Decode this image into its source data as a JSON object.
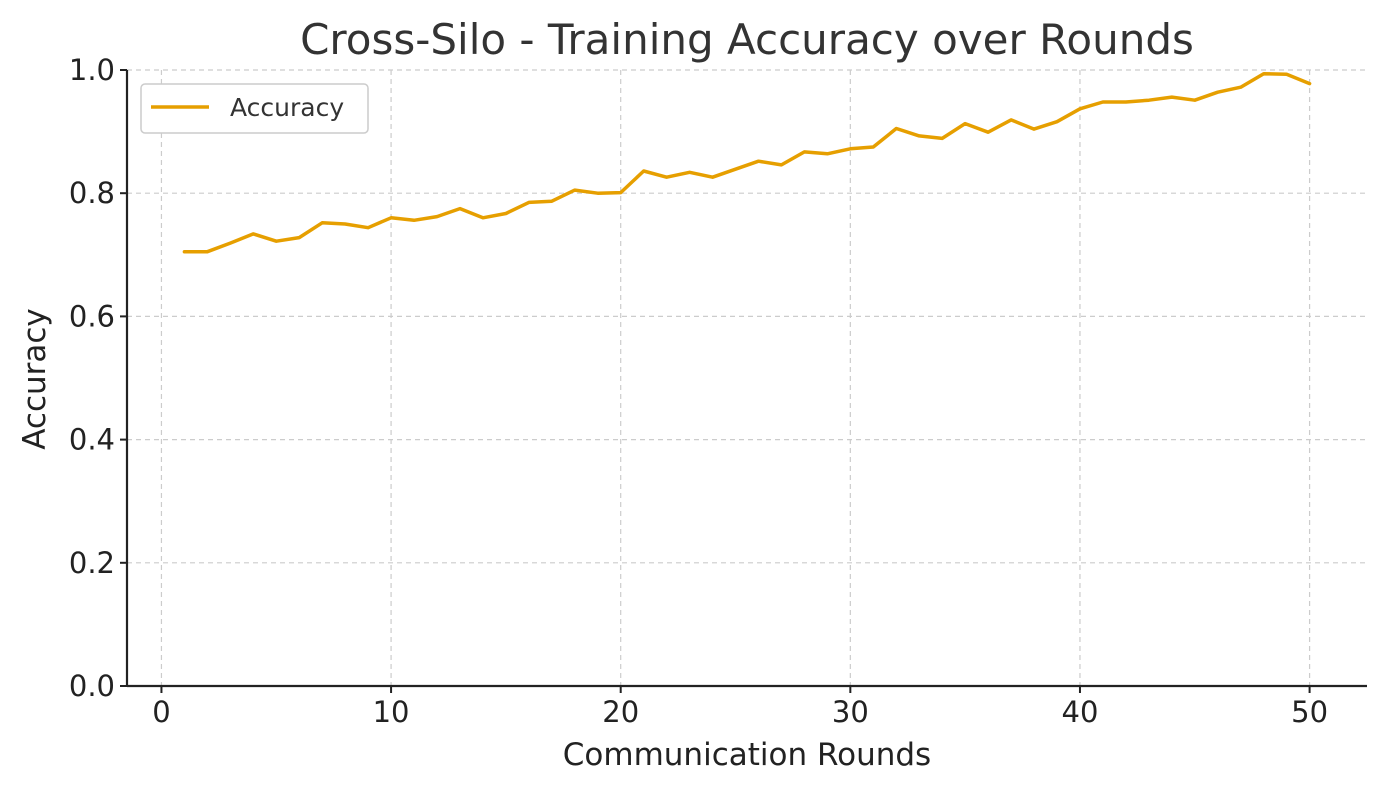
{
  "chart_data": {
    "type": "line",
    "title": "Cross-Silo - Training Accuracy over Rounds",
    "xlabel": "Communication Rounds",
    "ylabel": "Accuracy",
    "xlim": [
      -1.5,
      52.5
    ],
    "ylim": [
      0.0,
      1.0
    ],
    "xticks": [
      0,
      10,
      20,
      30,
      40,
      50
    ],
    "xtick_labels": [
      "0",
      "10",
      "20",
      "30",
      "40",
      "50"
    ],
    "yticks": [
      0.0,
      0.2,
      0.4,
      0.6,
      0.8,
      1.0
    ],
    "ytick_labels": [
      "0.0",
      "0.2",
      "0.4",
      "0.6",
      "0.8",
      "1.0"
    ],
    "grid": true,
    "legend_position": "upper-left",
    "series": [
      {
        "name": "Accuracy",
        "color": "#e69f00",
        "x": [
          1,
          2,
          3,
          4,
          5,
          6,
          7,
          8,
          9,
          10,
          11,
          12,
          13,
          14,
          15,
          16,
          17,
          18,
          19,
          20,
          21,
          22,
          23,
          24,
          25,
          26,
          27,
          28,
          29,
          30,
          31,
          32,
          33,
          34,
          35,
          36,
          37,
          38,
          39,
          40,
          41,
          42,
          43,
          44,
          45,
          46,
          47,
          48,
          49,
          50
        ],
        "y": [
          0.705,
          0.705,
          0.719,
          0.734,
          0.722,
          0.728,
          0.752,
          0.75,
          0.744,
          0.76,
          0.756,
          0.762,
          0.775,
          0.76,
          0.767,
          0.785,
          0.787,
          0.805,
          0.8,
          0.801,
          0.836,
          0.826,
          0.834,
          0.826,
          0.839,
          0.852,
          0.846,
          0.867,
          0.864,
          0.872,
          0.875,
          0.905,
          0.893,
          0.889,
          0.913,
          0.899,
          0.919,
          0.904,
          0.916,
          0.937,
          0.948,
          0.948,
          0.951,
          0.956,
          0.951,
          0.964,
          0.972,
          0.994,
          0.993,
          0.978
        ]
      }
    ]
  }
}
